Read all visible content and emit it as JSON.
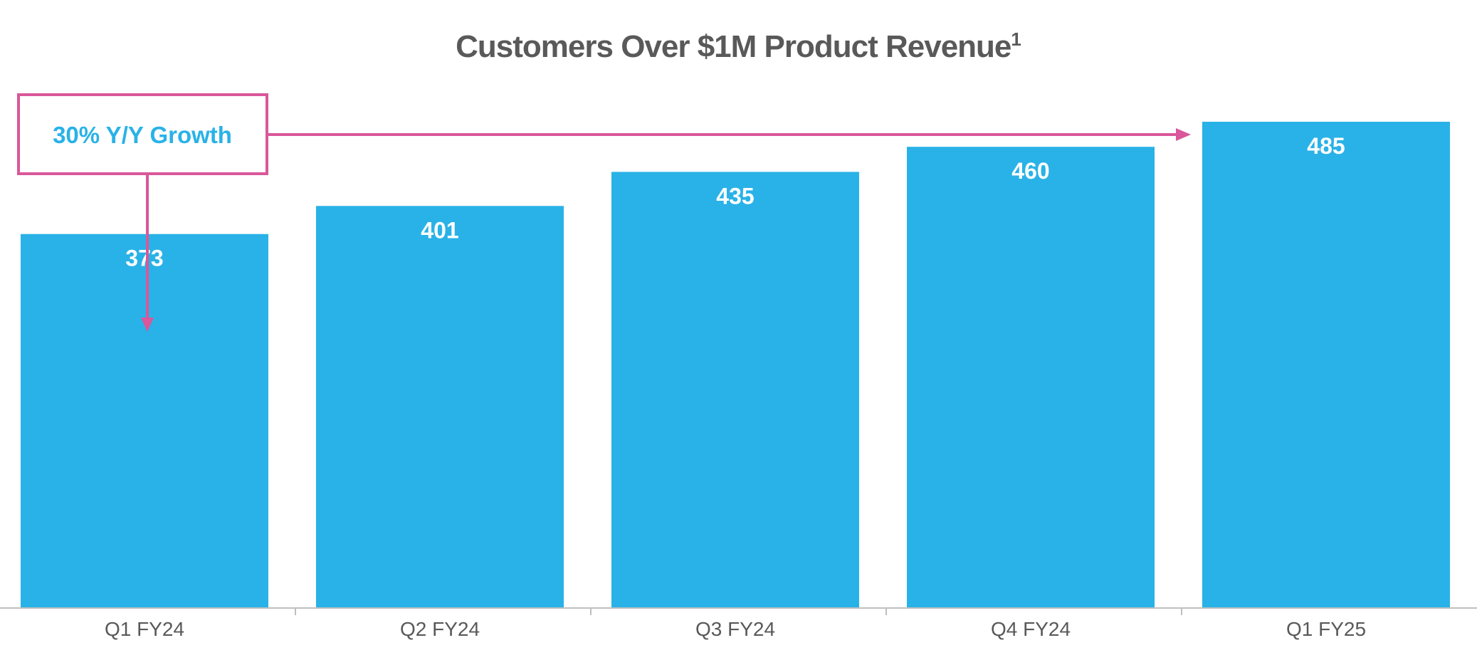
{
  "chart_data": {
    "type": "bar",
    "title": "Customers Over $1M Product Revenue",
    "title_superscript": "1",
    "categories": [
      "Q1 FY24",
      "Q2 FY24",
      "Q3 FY24",
      "Q4 FY24",
      "Q1 FY25"
    ],
    "values": [
      373,
      401,
      435,
      460,
      485
    ],
    "xlabel": "",
    "ylabel": "",
    "ylim": [
      0,
      485
    ],
    "grid": false,
    "legend": "none",
    "bar_color": "#29B2E7",
    "annotation": {
      "text": "30% Y/Y Growth",
      "from_category": "Q1 FY24",
      "to_category": "Q1 FY25",
      "text_color": "#29B2E7",
      "border_color": "#D9579A"
    }
  }
}
